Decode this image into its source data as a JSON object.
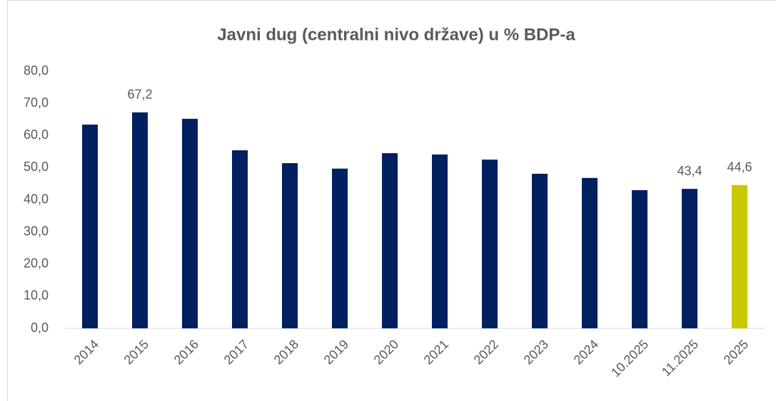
{
  "chart_data": {
    "type": "bar",
    "title": "Javni dug (centralni nivo države) u % BDP-a",
    "categories": [
      "2014",
      "2015",
      "2016",
      "2017",
      "2018",
      "2019",
      "2020",
      "2021",
      "2022",
      "2023",
      "2024",
      "10.2025",
      "11.2025",
      "2025"
    ],
    "values": [
      63.4,
      67.2,
      65.2,
      55.4,
      51.4,
      49.7,
      54.5,
      54.1,
      52.5,
      48.1,
      46.8,
      43.0,
      43.4,
      44.6
    ],
    "value_labels": [
      null,
      "67,2",
      null,
      null,
      null,
      null,
      null,
      null,
      null,
      null,
      null,
      null,
      "43,4",
      "44,6"
    ],
    "colors": [
      "#002060",
      "#002060",
      "#002060",
      "#002060",
      "#002060",
      "#002060",
      "#002060",
      "#002060",
      "#002060",
      "#002060",
      "#002060",
      "#002060",
      "#002060",
      "#c8c800"
    ],
    "ylim": [
      0,
      80
    ],
    "yticks": [
      {
        "value": 0,
        "label": "0,0"
      },
      {
        "value": 10,
        "label": "10,0"
      },
      {
        "value": 20,
        "label": "20,0"
      },
      {
        "value": 30,
        "label": "30,0"
      },
      {
        "value": 40,
        "label": "40,0"
      },
      {
        "value": 50,
        "label": "50,0"
      },
      {
        "value": 60,
        "label": "60,0"
      },
      {
        "value": 70,
        "label": "70,0"
      },
      {
        "value": 80,
        "label": "80,0"
      }
    ],
    "grid": false
  }
}
